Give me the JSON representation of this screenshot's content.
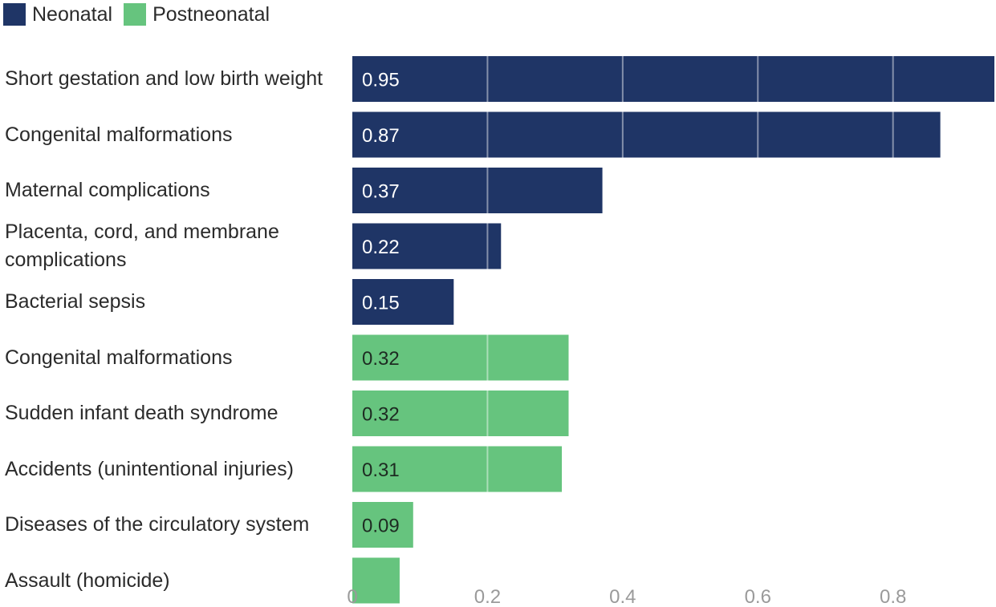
{
  "chart_data": {
    "type": "bar",
    "orientation": "horizontal",
    "title": "",
    "xlabel": "",
    "ylabel": "",
    "xlim": [
      0,
      0.95
    ],
    "ticks": [
      "0",
      "0.2",
      "0.4",
      "0.6",
      "0.8"
    ],
    "tick_values": [
      0,
      0.2,
      0.4,
      0.6,
      0.8
    ],
    "grid": true,
    "legend_position": "top-left",
    "series": [
      {
        "name": "Neonatal",
        "color": "#1f3566"
      },
      {
        "name": "Postneonatal",
        "color": "#66c47e"
      }
    ],
    "bars": [
      {
        "category": "Short gestation and low birth weight",
        "series": "Neonatal",
        "value": 0.95,
        "label": "0.95"
      },
      {
        "category": "Congenital malformations",
        "series": "Neonatal",
        "value": 0.87,
        "label": "0.87"
      },
      {
        "category": "Maternal complications",
        "series": "Neonatal",
        "value": 0.37,
        "label": "0.37"
      },
      {
        "category": "Placenta, cord, and membrane complications",
        "series": "Neonatal",
        "value": 0.22,
        "label": "0.22"
      },
      {
        "category": "Bacterial sepsis",
        "series": "Neonatal",
        "value": 0.15,
        "label": "0.15"
      },
      {
        "category": "Congenital malformations",
        "series": "Postneonatal",
        "value": 0.32,
        "label": "0.32"
      },
      {
        "category": "Sudden infant death syndrome",
        "series": "Postneonatal",
        "value": 0.32,
        "label": "0.32"
      },
      {
        "category": "Accidents (unintentional injuries)",
        "series": "Postneonatal",
        "value": 0.31,
        "label": "0.31"
      },
      {
        "category": "Diseases of the circulatory system",
        "series": "Postneonatal",
        "value": 0.09,
        "label": "0.09"
      },
      {
        "category": "Assault (homicide)",
        "series": "Postneonatal",
        "value": 0.07,
        "label": ""
      }
    ]
  }
}
